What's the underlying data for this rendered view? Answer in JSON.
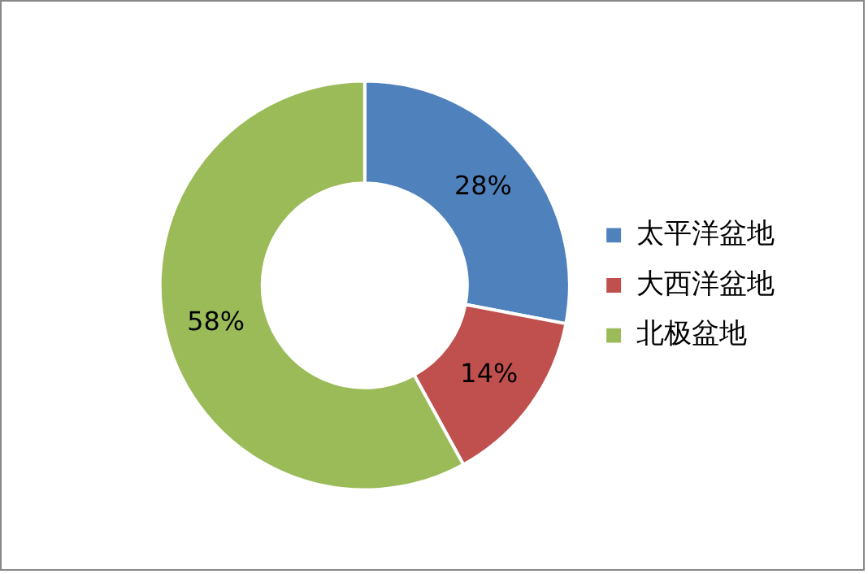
{
  "chart_data": {
    "type": "donut",
    "categories": [
      "太平洋盆地",
      "大西洋盆地",
      "北极盆地"
    ],
    "values": [
      28,
      14,
      58
    ],
    "value_labels": [
      "28%",
      "14%",
      "58%"
    ],
    "colors": [
      "#4f81bd",
      "#c0504d",
      "#9bbb59"
    ],
    "legend": "right"
  }
}
